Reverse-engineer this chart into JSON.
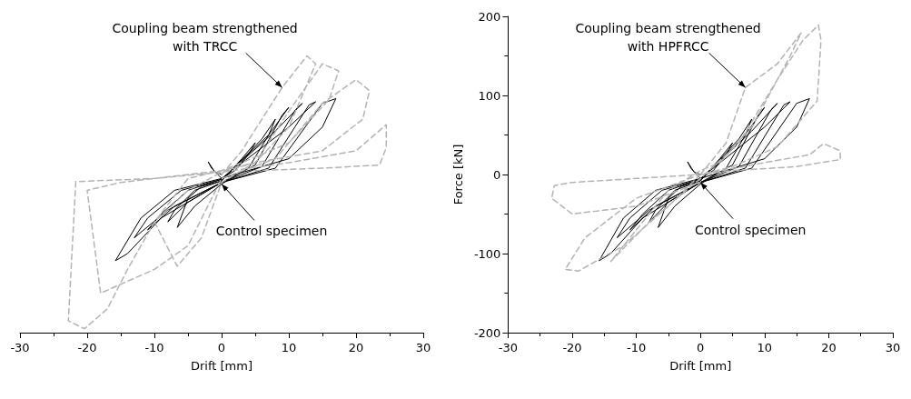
{
  "chart_data": [
    {
      "type": "line",
      "xlabel": "Drift [mm]",
      "xlim": [
        -30,
        30
      ],
      "xticks": [
        -30,
        -20,
        -10,
        0,
        10,
        20,
        30
      ],
      "ylim": [
        -200,
        200
      ],
      "yticks": [
        -200,
        -100,
        0,
        100,
        200
      ],
      "tick_labels": "x",
      "marker": "none",
      "annotations": [
        {
          "text": "Coupling beam strengthened\nwith TRCC",
          "x": 9,
          "y": 110
        },
        {
          "text": "Control specimen",
          "x": 0,
          "y": -12
        }
      ],
      "series": [
        {
          "color": "#b3b3b3",
          "line_style": "dashed",
          "x": [
            0,
            3,
            6,
            9,
            12.7,
            14,
            10,
            5,
            0,
            -5,
            -10,
            -6.6,
            -3,
            0,
            5,
            10,
            15,
            17.4,
            16,
            10,
            3,
            0,
            -8,
            -15,
            -20,
            -18,
            -10,
            -5,
            0,
            8,
            15,
            20,
            22,
            21,
            15,
            5,
            0,
            -10,
            -21.7,
            -22.8,
            -20.4,
            -17,
            -14,
            -10,
            -5,
            0,
            10,
            20,
            24.5,
            24.5,
            23.5,
            15,
            5
          ],
          "values": [
            0,
            30,
            70,
            110,
            150,
            140,
            60,
            15,
            5,
            -5,
            -60,
            -116,
            -80,
            -10,
            15,
            80,
            140,
            131,
            95,
            40,
            15,
            5,
            -3,
            -10,
            -20,
            -150,
            -120,
            -90,
            -5,
            20,
            90,
            120,
            106,
            70,
            30,
            15,
            3,
            -5,
            -9,
            -185,
            -195,
            -170,
            -120,
            -60,
            -20,
            3,
            15,
            30,
            63,
            34,
            12,
            8,
            5
          ]
        },
        {
          "color": "#000000",
          "line_style": "solid",
          "x": [
            0,
            -1,
            -2,
            -1.5,
            0,
            2,
            4,
            5,
            3,
            0,
            -3,
            -5,
            -6.6,
            -4,
            0,
            4,
            7,
            8,
            6,
            0,
            -4,
            -7,
            -8,
            -5,
            0,
            5,
            9,
            10,
            7,
            0,
            -5,
            -9,
            -11,
            -7,
            0,
            6,
            11,
            12,
            8,
            0,
            -6,
            -11,
            -13,
            -8,
            0,
            7,
            13,
            14,
            10,
            0,
            -7,
            -12,
            -15.8,
            -14,
            -9,
            0,
            8,
            15,
            17,
            15,
            10,
            0
          ],
          "values": [
            0,
            3,
            16,
            8,
            -5,
            5,
            25,
            40,
            20,
            -8,
            -15,
            -30,
            -67,
            -40,
            -12,
            8,
            50,
            70,
            45,
            -8,
            -20,
            -45,
            -60,
            -35,
            -10,
            12,
            75,
            85,
            50,
            -6,
            -20,
            -50,
            -70,
            -40,
            -10,
            10,
            82,
            90,
            55,
            -6,
            -20,
            -55,
            -80,
            -45,
            -10,
            8,
            88,
            92,
            60,
            -5,
            -20,
            -55,
            -109,
            -100,
            -55,
            -10,
            8,
            90,
            96,
            60,
            20,
            -5
          ]
        }
      ]
    },
    {
      "type": "line",
      "xlabel": "Drift [mm]",
      "ylabel": "Force [kN]",
      "xlim": [
        -30,
        30
      ],
      "xticks": [
        -30,
        -20,
        -10,
        0,
        10,
        20,
        30
      ],
      "ylim": [
        -200,
        200
      ],
      "yticks": [
        -200,
        -100,
        0,
        100,
        200
      ],
      "marker": "none",
      "annotations": [
        {
          "text": "Coupling beam strengthened\nwith HPFRCC",
          "x": 7,
          "y": 110
        },
        {
          "text": "Control specimen",
          "x": 0,
          "y": -10
        }
      ],
      "series": [
        {
          "color": "#b3b3b3",
          "line_style": "dashed",
          "x": [
            0,
            4,
            7,
            12,
            15.7,
            14,
            8,
            3,
            0,
            -5,
            -10,
            -14,
            -8,
            0,
            6,
            12,
            16,
            18.4,
            18.8,
            18.2,
            12,
            5,
            0,
            -10,
            -18,
            -21.1,
            -19,
            -12,
            -5,
            0,
            10,
            17,
            19.2,
            21.8,
            21.8,
            15,
            5,
            0,
            -10,
            -20,
            -22.8,
            -23.2,
            -20,
            -10,
            0
          ],
          "values": [
            0,
            40,
            110,
            140,
            179,
            150,
            60,
            15,
            5,
            -20,
            -70,
            -110,
            -60,
            -5,
            40,
            120,
            170,
            189,
            170,
            93,
            35,
            10,
            0,
            -30,
            -80,
            -120,
            -122,
            -90,
            -40,
            0,
            15,
            25,
            39,
            30,
            19,
            10,
            5,
            0,
            -5,
            -10,
            -14,
            -30,
            -50,
            -40,
            -10
          ]
        },
        {
          "color": "#000000",
          "line_style": "solid",
          "x": [
            0,
            -1,
            -2,
            -1.5,
            0,
            2,
            4,
            5,
            3,
            0,
            -3,
            -5,
            -6.6,
            -4,
            0,
            4,
            7,
            8,
            6,
            0,
            -4,
            -7,
            -8,
            -5,
            0,
            5,
            9,
            10,
            7,
            0,
            -5,
            -9,
            -11,
            -7,
            0,
            6,
            11,
            12,
            8,
            0,
            -6,
            -11,
            -13,
            -8,
            0,
            7,
            13,
            14,
            10,
            0,
            -7,
            -12,
            -15.8,
            -14,
            -9,
            0,
            8,
            15,
            17,
            15,
            10,
            0
          ],
          "values": [
            0,
            3,
            16,
            8,
            -5,
            5,
            25,
            40,
            20,
            -8,
            -15,
            -30,
            -67,
            -40,
            -12,
            8,
            50,
            70,
            45,
            -8,
            -20,
            -45,
            -60,
            -35,
            -10,
            12,
            75,
            85,
            50,
            -6,
            -20,
            -50,
            -70,
            -40,
            -10,
            10,
            82,
            90,
            55,
            -6,
            -20,
            -55,
            -80,
            -45,
            -10,
            8,
            88,
            92,
            60,
            -5,
            -20,
            -55,
            -109,
            -100,
            -55,
            -10,
            8,
            90,
            96,
            60,
            20,
            -5
          ]
        }
      ]
    }
  ]
}
